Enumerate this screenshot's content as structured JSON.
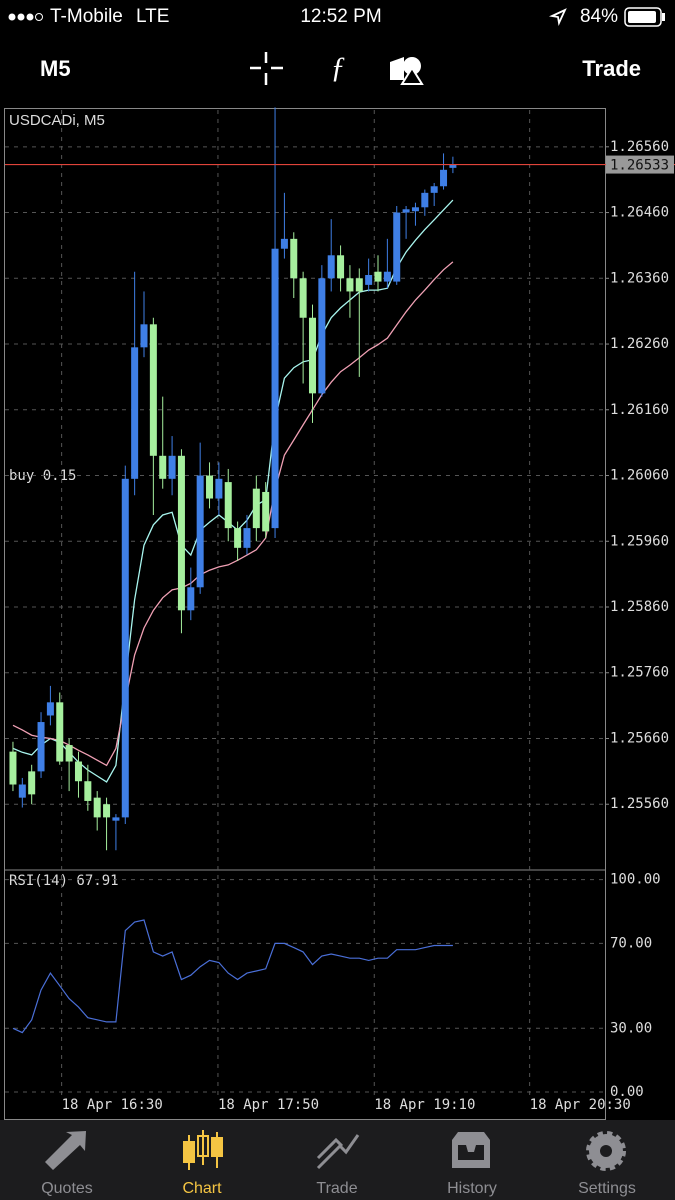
{
  "status_bar": {
    "carrier": "T-Mobile",
    "network": "LTE",
    "time": "12:52 PM",
    "battery": "84%"
  },
  "toolbar": {
    "timeframe": "M5",
    "trade": "Trade"
  },
  "chart_data": {
    "type": "candlestick",
    "title": "USDCADi, M5",
    "order_label": "buy 0.15",
    "open": [
      1.2564,
      1.2557,
      1.2561,
      1.2561,
      1.25695,
      1.25715,
      1.2565,
      1.25625,
      1.25595,
      1.2557,
      1.2556,
      1.25535,
      1.2554,
      1.26055,
      1.26255,
      1.2629,
      1.2609,
      1.26055,
      1.2609,
      1.25855,
      1.2589,
      1.2606,
      1.26025,
      1.2605,
      1.2598,
      1.2595,
      1.2604,
      1.26035,
      1.2598,
      1.26405,
      1.2642,
      1.2636,
      1.263,
      1.26185,
      1.2636,
      1.26395,
      1.2636,
      1.2636,
      1.2635,
      1.2637,
      1.26355,
      1.26355,
      1.2646,
      1.26462,
      1.26468,
      1.2649,
      1.265,
      1.26528
    ],
    "high": [
      1.25655,
      1.256,
      1.2562,
      1.257,
      1.2574,
      1.2573,
      1.2566,
      1.2564,
      1.2562,
      1.2558,
      1.2557,
      1.25545,
      1.26075,
      1.2637,
      1.2634,
      1.263,
      1.2618,
      1.2612,
      1.261,
      1.2592,
      1.2611,
      1.2608,
      1.2608,
      1.2607,
      1.2599,
      1.26,
      1.2606,
      1.2605,
      1.2662,
      1.2649,
      1.2643,
      1.2637,
      1.2632,
      1.2638,
      1.2645,
      1.2641,
      1.2638,
      1.26375,
      1.2639,
      1.26395,
      1.2642,
      1.2647,
      1.2647,
      1.26475,
      1.26495,
      1.26505,
      1.2655,
      1.26545
    ],
    "low": [
      1.2558,
      1.25555,
      1.2556,
      1.256,
      1.2568,
      1.2562,
      1.2558,
      1.2557,
      1.2555,
      1.2552,
      1.2549,
      1.2549,
      1.2553,
      1.2603,
      1.2624,
      1.26,
      1.2604,
      1.2603,
      1.2582,
      1.2584,
      1.2588,
      1.2601,
      1.26,
      1.2596,
      1.2593,
      1.2594,
      1.2596,
      1.25965,
      1.25965,
      1.2639,
      1.2633,
      1.262,
      1.2614,
      1.2618,
      1.2634,
      1.2634,
      1.263,
      1.2621,
      1.2634,
      1.2634,
      1.26345,
      1.2635,
      1.2642,
      1.2644,
      1.26455,
      1.2647,
      1.26495,
      1.2652
    ],
    "close": [
      1.2559,
      1.2559,
      1.25575,
      1.25685,
      1.25715,
      1.25625,
      1.25625,
      1.25595,
      1.25565,
      1.2554,
      1.2554,
      1.2554,
      1.26055,
      1.26255,
      1.2629,
      1.2609,
      1.26055,
      1.2609,
      1.25855,
      1.2589,
      1.2606,
      1.26025,
      1.26055,
      1.2598,
      1.2595,
      1.2598,
      1.2598,
      1.25975,
      1.26405,
      1.2642,
      1.2636,
      1.263,
      1.26185,
      1.2636,
      1.26395,
      1.2636,
      1.2634,
      1.2634,
      1.26365,
      1.26355,
      1.2637,
      1.2646,
      1.26465,
      1.26468,
      1.2649,
      1.265,
      1.26525,
      1.26533
    ],
    "up_color": "#3f7fe6",
    "down_color": "#a6ef9e",
    "series": [
      {
        "color": "#a8f5ee",
        "values": [
          1.25645,
          1.25639,
          1.25635,
          1.2565,
          1.2566,
          1.25654,
          1.25639,
          1.25624,
          1.25612,
          1.25603,
          1.25594,
          1.25619,
          1.25749,
          1.25871,
          1.25954,
          1.25985,
          1.26,
          1.26004,
          1.25954,
          1.25939,
          1.25977,
          1.25989,
          1.26,
          1.25989,
          1.25977,
          1.25992,
          1.26015,
          1.26023,
          1.26144,
          1.26208,
          1.26224,
          1.26233,
          1.26236,
          1.26274,
          1.263,
          1.26315,
          1.26327,
          1.26339,
          1.26342,
          1.26342,
          1.26345,
          1.26376,
          1.264,
          1.26418,
          1.26434,
          1.26449,
          1.26464,
          1.26479
        ]
      },
      {
        "color": "#f0a0b4",
        "values": [
          1.2568,
          1.25673,
          1.25665,
          1.25662,
          1.2566,
          1.25657,
          1.2565,
          1.25642,
          1.25635,
          1.25627,
          1.25619,
          1.25645,
          1.25718,
          1.25787,
          1.25828,
          1.25855,
          1.25874,
          1.25886,
          1.25889,
          1.25896,
          1.25909,
          1.25916,
          1.25921,
          1.25924,
          1.25931,
          1.25939,
          1.25947,
          1.25965,
          1.26038,
          1.26091,
          1.26114,
          1.26137,
          1.2616,
          1.26183,
          1.26202,
          1.26218,
          1.26228,
          1.26239,
          1.26251,
          1.26259,
          1.26269,
          1.26289,
          1.26309,
          1.26327,
          1.26342,
          1.26358,
          1.26373,
          1.26385
        ]
      }
    ],
    "current_price": 1.26533,
    "current_color": "#e0443a",
    "xlim": [
      -0.85,
      63.25
    ],
    "ylim": [
      1.25463,
      1.26616
    ],
    "xticks": [
      {
        "value": 5.2,
        "label": "18 Apr 16:30"
      },
      {
        "value": 21.9,
        "label": "18 Apr 17:50"
      },
      {
        "value": 38.6,
        "label": "18 Apr 19:10"
      },
      {
        "value": 55.2,
        "label": "18 Apr 20:30"
      }
    ],
    "yticks": [
      {
        "value": 1.2556,
        "label": "1.25560"
      },
      {
        "value": 1.2566,
        "label": "1.25660"
      },
      {
        "value": 1.2576,
        "label": "1.25760"
      },
      {
        "value": 1.2586,
        "label": "1.25860"
      },
      {
        "value": 1.2596,
        "label": "1.25960"
      },
      {
        "value": 1.2606,
        "label": "1.26060"
      },
      {
        "value": 1.2616,
        "label": "1.26160"
      },
      {
        "value": 1.2626,
        "label": "1.26260"
      },
      {
        "value": 1.2636,
        "label": "1.26360"
      },
      {
        "value": 1.2646,
        "label": "1.26460"
      },
      {
        "value": 1.2656,
        "label": "1.26560"
      }
    ],
    "grid": true,
    "rsi": {
      "title": "RSI(14) 67.91",
      "color": "#4a6fd8",
      "values": [
        30,
        28,
        34,
        48,
        56,
        50,
        44,
        40,
        35,
        34,
        33,
        33,
        76,
        80,
        81,
        66,
        64,
        66,
        53,
        55,
        59,
        62,
        61,
        56,
        53,
        56,
        57,
        58,
        70,
        70,
        68,
        66,
        60,
        64,
        65,
        64,
        63,
        63,
        62,
        63,
        63,
        67,
        67,
        67,
        68,
        69,
        69,
        69
      ],
      "ylim": [
        -1.4,
        103.6
      ],
      "yticks": [
        {
          "value": 0,
          "label": "0.00"
        },
        {
          "value": 30,
          "label": "30.00"
        },
        {
          "value": 70,
          "label": "70.00"
        },
        {
          "value": 100,
          "label": "100.00"
        }
      ]
    }
  },
  "tab_bar": {
    "tabs": [
      "Quotes",
      "Chart",
      "Trade",
      "History",
      "Settings"
    ]
  }
}
